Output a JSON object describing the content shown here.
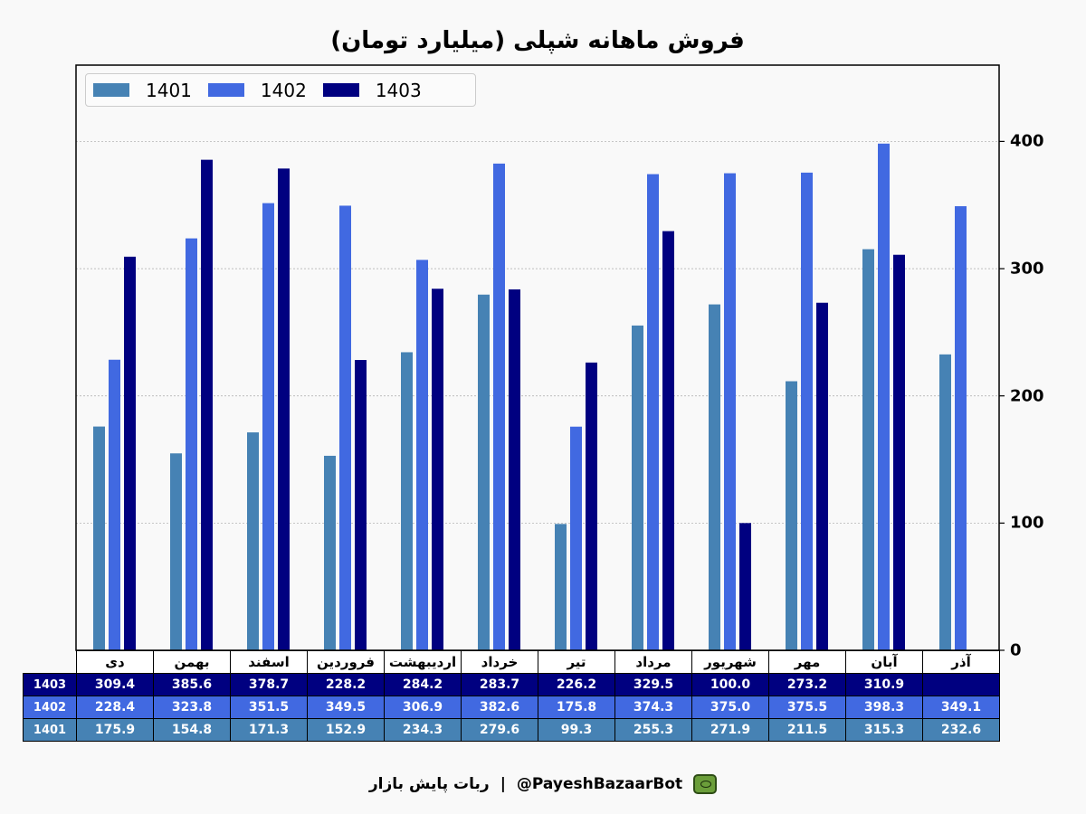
{
  "chart_data": {
    "type": "bar",
    "title": "فروش ماهانه شپلی (میلیارد تومان)",
    "categories": [
      "دی",
      "بهمن",
      "اسفند",
      "فروردین",
      "اردیبهشت",
      "خرداد",
      "تیر",
      "مرداد",
      "شهریور",
      "مهر",
      "آبان",
      "آذر"
    ],
    "series": [
      {
        "name": "1401",
        "color": "#4682b4",
        "values": [
          175.9,
          154.8,
          171.3,
          152.9,
          234.3,
          279.6,
          99.3,
          255.3,
          271.9,
          211.5,
          315.3,
          232.6
        ]
      },
      {
        "name": "1402",
        "color": "#4169e1",
        "values": [
          228.4,
          323.8,
          351.5,
          349.5,
          306.9,
          382.6,
          175.8,
          374.3,
          375.0,
          375.5,
          398.3,
          349.1
        ]
      },
      {
        "name": "1403",
        "color": "#000080",
        "values": [
          309.4,
          385.6,
          378.7,
          228.2,
          284.2,
          283.7,
          226.2,
          329.5,
          100.0,
          273.2,
          310.9,
          null
        ]
      }
    ],
    "yticks": [
      0,
      100,
      200,
      300,
      400
    ],
    "ylim": [
      0,
      460
    ],
    "yaxis_position": "right",
    "grid": true,
    "legend_position": "top-left",
    "table_value_format": "one-decimal"
  },
  "footer": {
    "bot_name": "ربات پایش بازار",
    "separator": "|",
    "handle": "@PayeshBazaarBot",
    "icon": "robot-icon"
  }
}
